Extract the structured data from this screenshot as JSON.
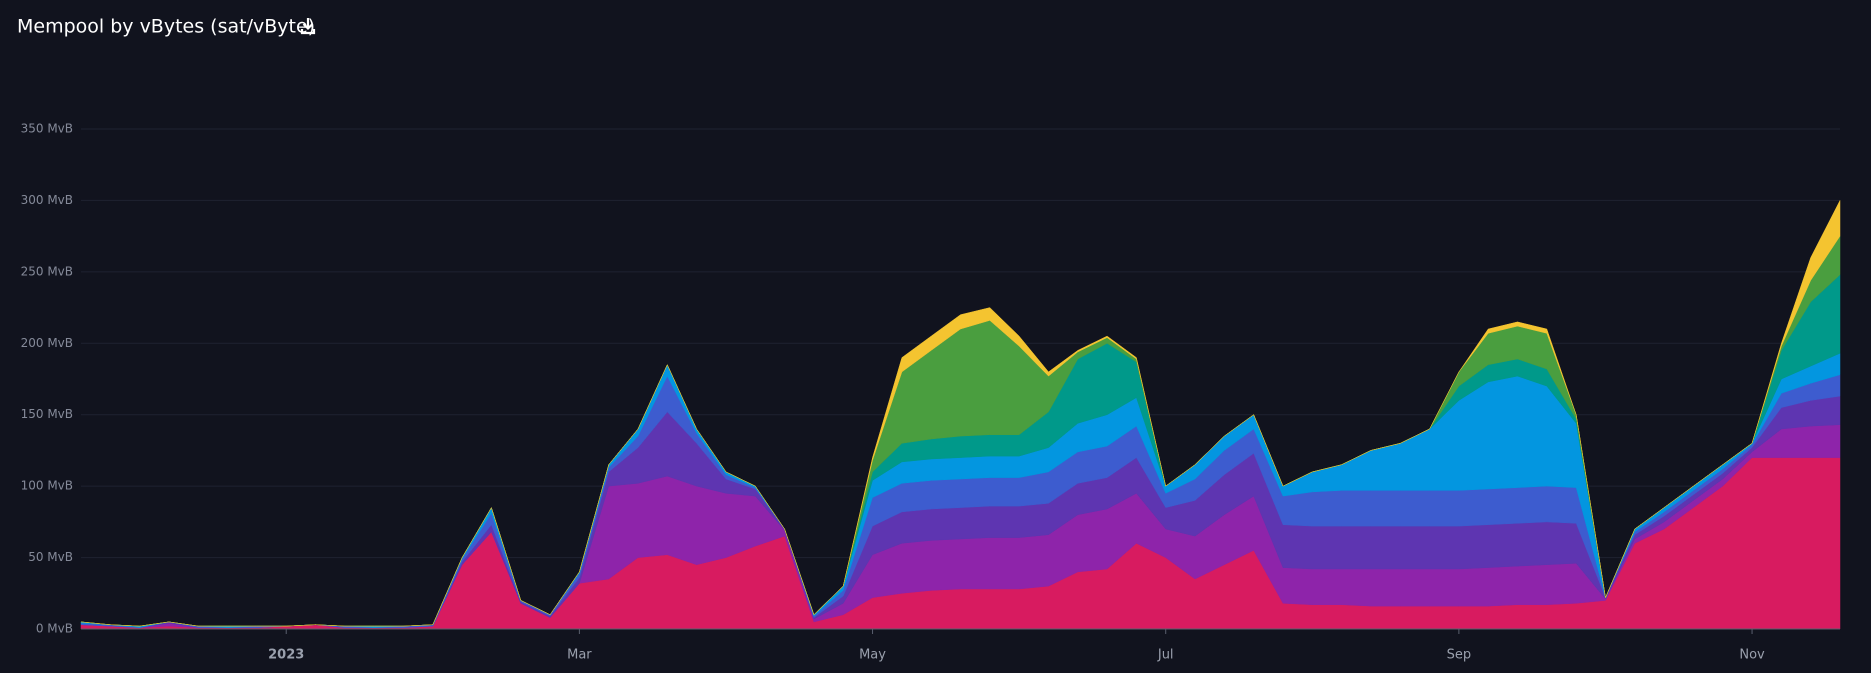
{
  "chart_data": {
    "type": "stacked-area",
    "title": "Mempool by vBytes (sat/vByte)",
    "categories": [
      null,
      null,
      null,
      null,
      null,
      null,
      null,
      "2023",
      null,
      null,
      null,
      null,
      null,
      null,
      null,
      null,
      null,
      "Mar",
      null,
      null,
      null,
      null,
      null,
      null,
      null,
      null,
      null,
      "May",
      null,
      null,
      null,
      null,
      null,
      null,
      null,
      null,
      null,
      "Jul",
      null,
      null,
      null,
      null,
      null,
      null,
      null,
      null,
      null,
      "Sep",
      null,
      null,
      null,
      null,
      null,
      null,
      null,
      null,
      null,
      "Nov",
      null,
      null,
      null
    ],
    "ylim": [
      0,
      350
    ],
    "yticks": [
      {
        "value": 0,
        "label": "0 MvB"
      },
      {
        "value": 50,
        "label": "50 MvB"
      },
      {
        "value": 100,
        "label": "100 MvB"
      },
      {
        "value": 150,
        "label": "150 MvB"
      },
      {
        "value": 200,
        "label": "200 MvB"
      },
      {
        "value": 250,
        "label": "250 MvB"
      },
      {
        "value": 300,
        "label": "300 MvB"
      },
      {
        "value": 350,
        "label": "350 MvB"
      }
    ],
    "grid": true,
    "series": [
      {
        "color": "#d81b60",
        "values": [
          3,
          2,
          1,
          2,
          1,
          1,
          1,
          2,
          3,
          1,
          1,
          1,
          2,
          45,
          68,
          18,
          8,
          32,
          35,
          50,
          52,
          45,
          50,
          58,
          65,
          5,
          10,
          22,
          25,
          27,
          28,
          28,
          28,
          30,
          40,
          42,
          60,
          50,
          35,
          45,
          55,
          18,
          17,
          17,
          16,
          16,
          16,
          16,
          16,
          17,
          17,
          18,
          20,
          60,
          70,
          85,
          100,
          120,
          120,
          120,
          120
        ]
      },
      {
        "color": "#8e24aa",
        "values": [
          0,
          0,
          0,
          2,
          0,
          0,
          0,
          0,
          0,
          0,
          0,
          0,
          0,
          0,
          0,
          0,
          0,
          0,
          65,
          52,
          55,
          55,
          45,
          35,
          4,
          2,
          8,
          30,
          35,
          35,
          35,
          36,
          36,
          36,
          40,
          42,
          35,
          20,
          30,
          35,
          38,
          25,
          25,
          25,
          26,
          26,
          26,
          26,
          27,
          27,
          28,
          28,
          1,
          3,
          5,
          5,
          5,
          4,
          20,
          22,
          23
        ]
      },
      {
        "color": "#5e35b1",
        "values": [
          0,
          0,
          0,
          1,
          0,
          0,
          0,
          0,
          0,
          0,
          0,
          0,
          0,
          2,
          5,
          1,
          1,
          4,
          10,
          25,
          45,
          30,
          10,
          5,
          1,
          1,
          5,
          20,
          22,
          22,
          22,
          22,
          22,
          22,
          22,
          22,
          25,
          15,
          25,
          28,
          30,
          30,
          30,
          30,
          30,
          30,
          30,
          30,
          30,
          30,
          30,
          28,
          1,
          3,
          4,
          4,
          4,
          3,
          15,
          18,
          20
        ]
      },
      {
        "color": "#3d5ccf",
        "values": [
          1,
          1,
          0,
          0,
          1,
          0,
          1,
          0,
          0,
          1,
          0,
          1,
          1,
          2,
          8,
          1,
          1,
          3,
          3,
          8,
          25,
          7,
          3,
          1,
          0,
          1,
          4,
          20,
          20,
          20,
          20,
          20,
          20,
          22,
          22,
          22,
          22,
          10,
          15,
          17,
          17,
          20,
          24,
          25,
          25,
          25,
          25,
          25,
          25,
          25,
          25,
          25,
          0,
          2,
          3,
          3,
          3,
          2,
          10,
          12,
          15
        ]
      },
      {
        "color": "#0396e0",
        "values": [
          1,
          0,
          1,
          0,
          0,
          1,
          0,
          0,
          0,
          0,
          1,
          0,
          0,
          1,
          4,
          0,
          0,
          1,
          2,
          5,
          8,
          3,
          2,
          1,
          0,
          1,
          3,
          12,
          15,
          15,
          15,
          15,
          15,
          17,
          20,
          22,
          20,
          5,
          10,
          10,
          10,
          7,
          14,
          18,
          28,
          33,
          43,
          63,
          75,
          78,
          70,
          45,
          0,
          2,
          3,
          3,
          3,
          1,
          10,
          12,
          15
        ]
      },
      {
        "color": "#00998a",
        "values": [
          0,
          0,
          0,
          0,
          0,
          0,
          0,
          0,
          0,
          0,
          0,
          0,
          0,
          0,
          0,
          0,
          0,
          0,
          0,
          0,
          0,
          0,
          0,
          0,
          0,
          0,
          0,
          6,
          13,
          14,
          15,
          15,
          15,
          25,
          45,
          50,
          25,
          0,
          0,
          0,
          0,
          0,
          0,
          0,
          0,
          0,
          0,
          10,
          12,
          12,
          12,
          3,
          0,
          0,
          0,
          0,
          0,
          0,
          20,
          45,
          55
        ]
      },
      {
        "color": "#4a9e3f",
        "values": [
          0,
          0,
          0,
          0,
          0,
          0,
          0,
          0,
          0,
          0,
          0,
          0,
          0,
          0,
          0,
          0,
          0,
          0,
          0,
          0,
          0,
          0,
          0,
          0,
          0,
          0,
          0,
          8,
          50,
          62,
          75,
          80,
          62,
          25,
          5,
          4,
          2,
          0,
          0,
          0,
          0,
          0,
          0,
          0,
          0,
          0,
          0,
          10,
          22,
          23,
          25,
          3,
          0,
          0,
          0,
          0,
          0,
          0,
          3,
          15,
          27
        ]
      },
      {
        "color": "#f4c430",
        "values": [
          0,
          0,
          0,
          0,
          0,
          0,
          0,
          0,
          0,
          0,
          0,
          0,
          0,
          0,
          0,
          0,
          0,
          0,
          0,
          0,
          0,
          0,
          0,
          0,
          0,
          0,
          0,
          2,
          10,
          10,
          10,
          9,
          7,
          3,
          1,
          1,
          1,
          0,
          0,
          0,
          0,
          0,
          0,
          0,
          0,
          0,
          0,
          0,
          3,
          3,
          3,
          0,
          0,
          0,
          0,
          0,
          0,
          0,
          2,
          16,
          25
        ]
      }
    ]
  }
}
